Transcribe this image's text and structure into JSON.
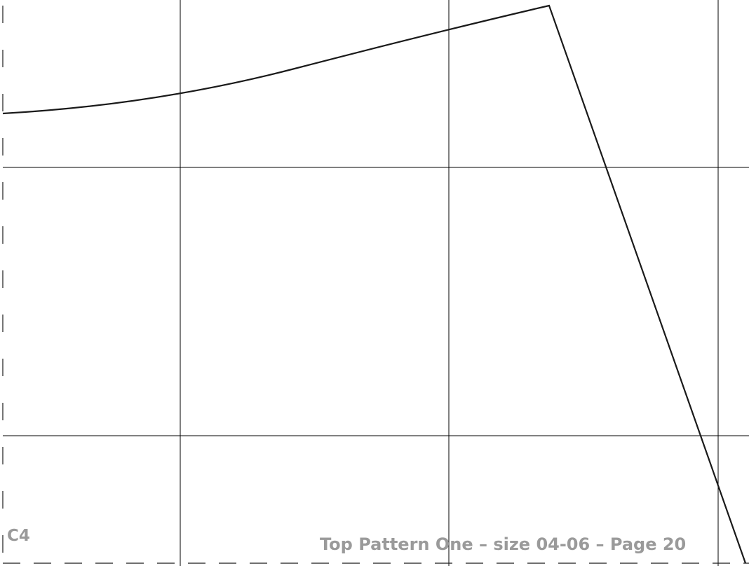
{
  "page": {
    "tile_label": "C4",
    "footer_text": "Top Pattern One – size 04-06 – Page 20",
    "label_color": "#9a9a9a",
    "line_color": "#1a1a1a"
  }
}
